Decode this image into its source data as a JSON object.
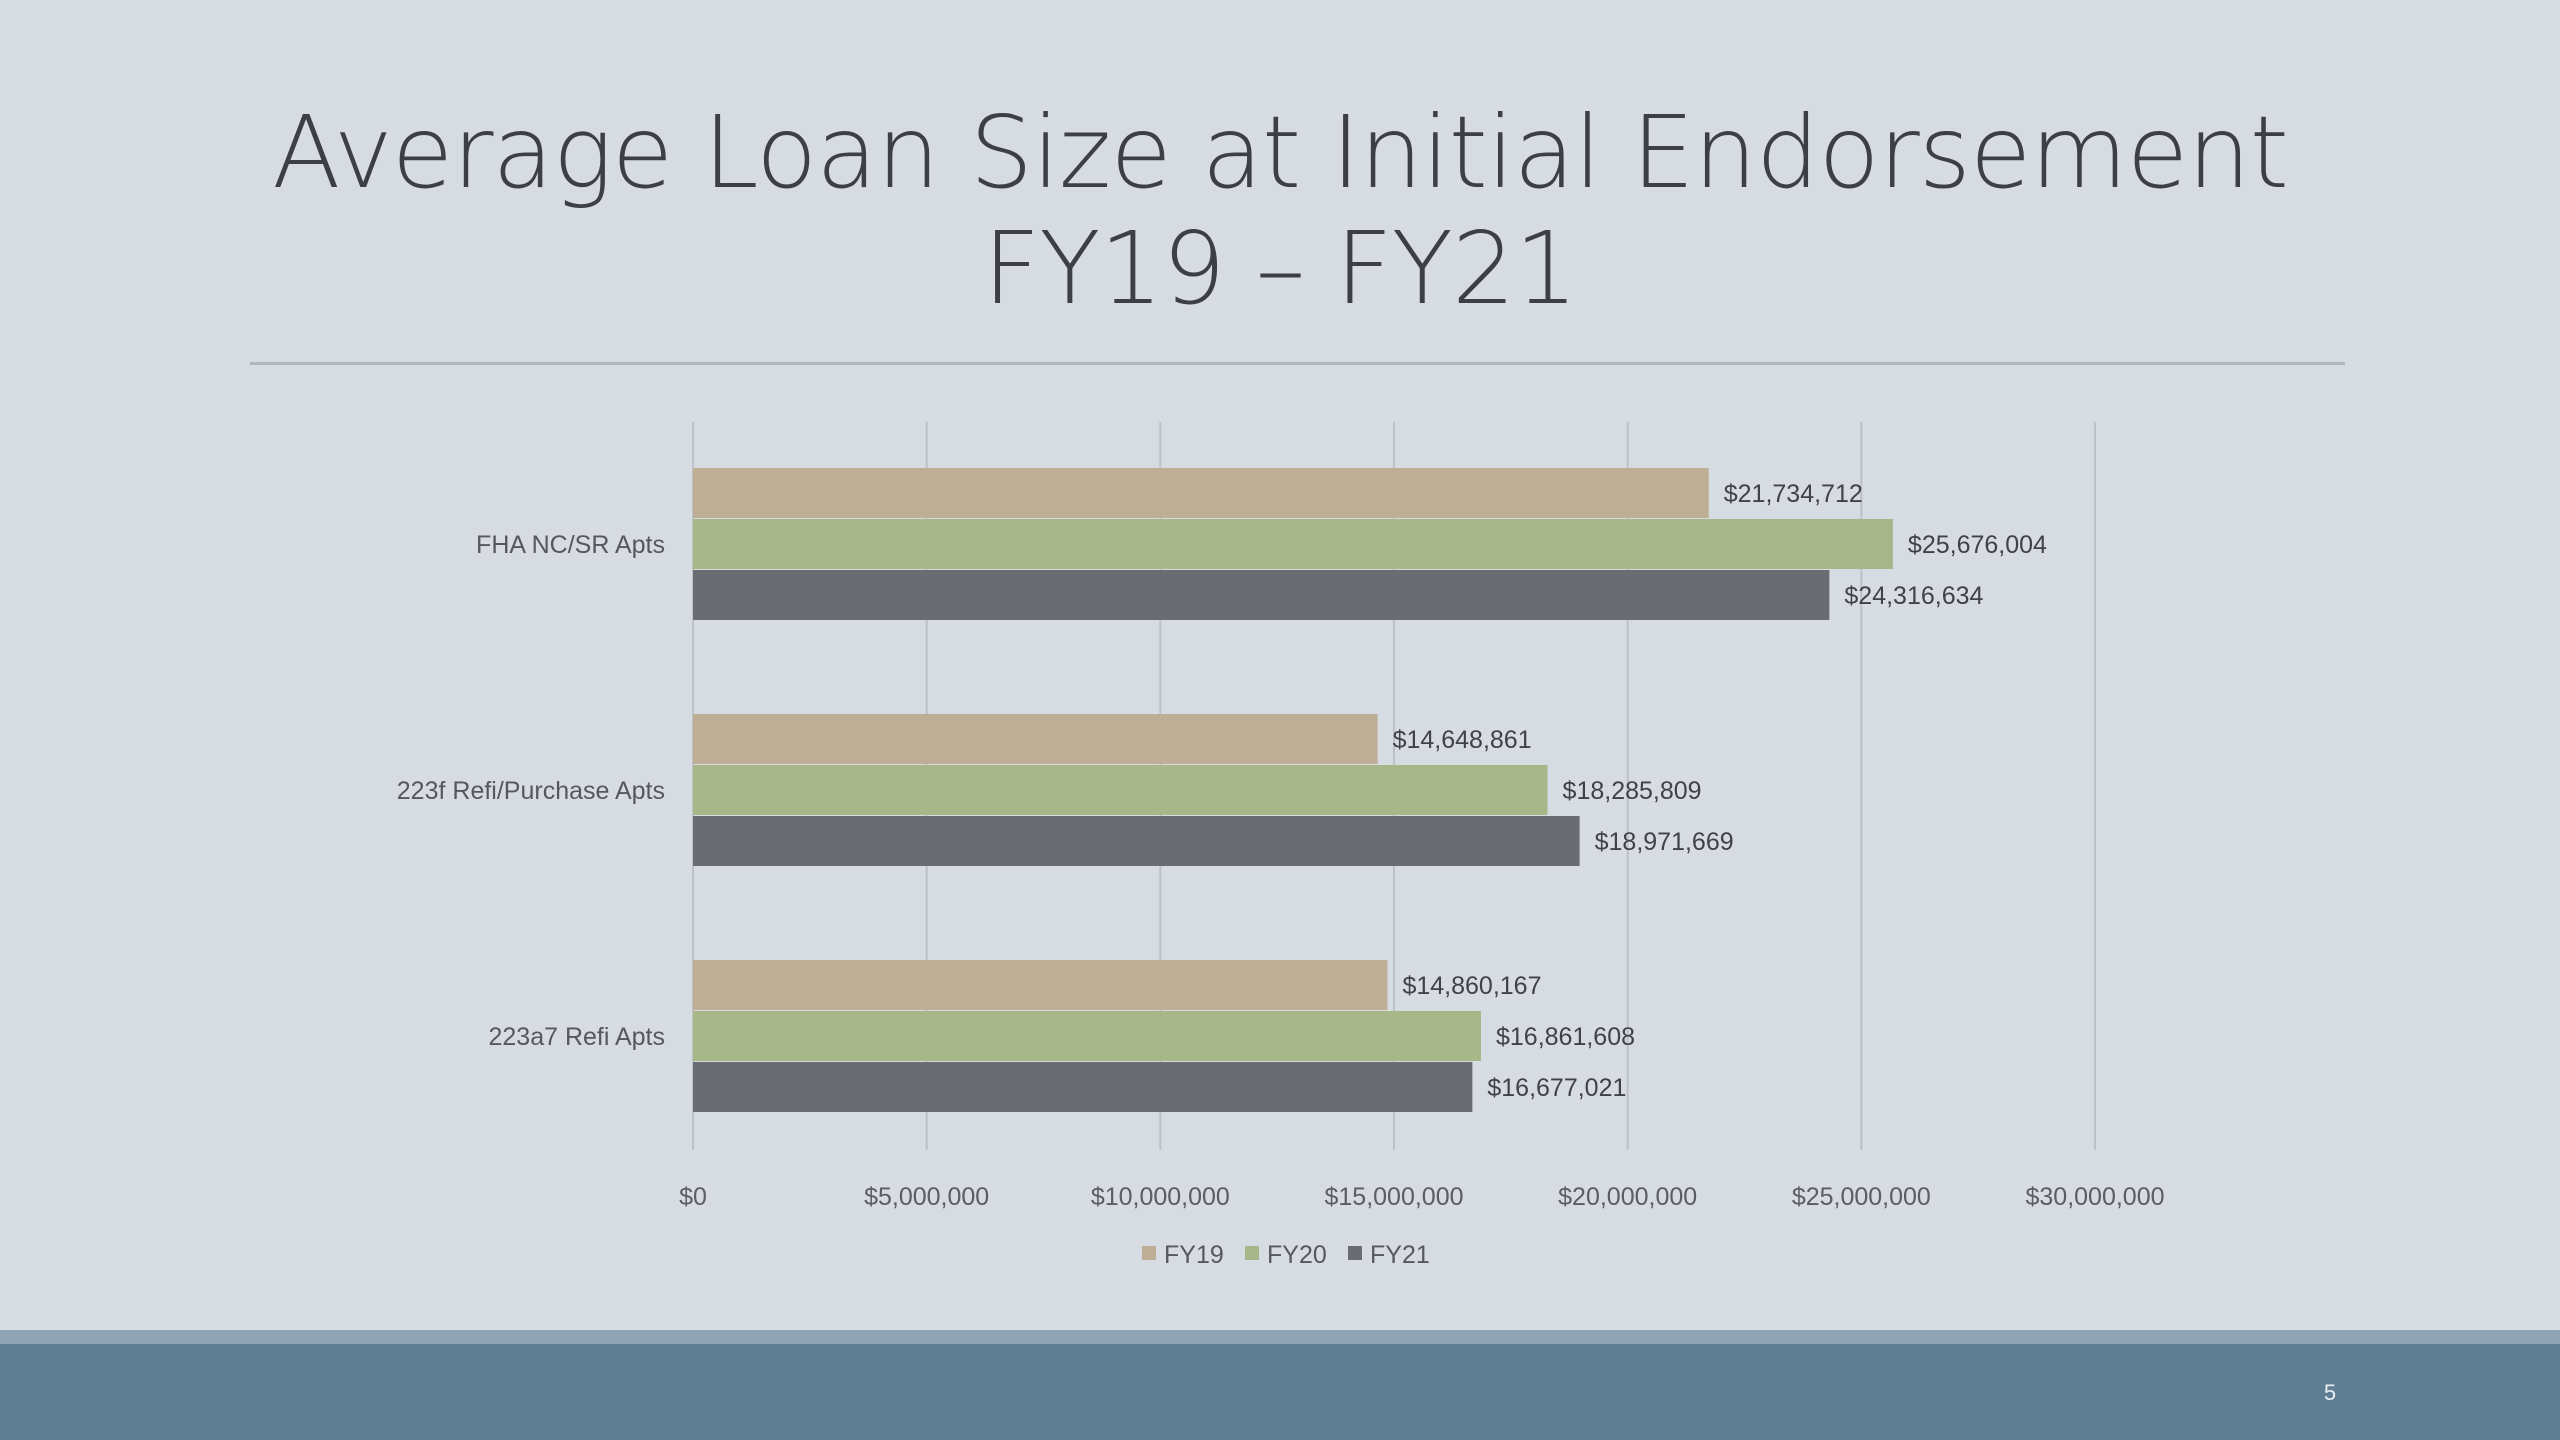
{
  "slide": {
    "title_line1": "Average Loan Size at Initial Endorsement",
    "title_line2": "FY19 – FY21",
    "page_number": "5"
  },
  "colors": {
    "background": "#d6dce1",
    "FY19": "#bfae96",
    "FY20": "#a8b78a",
    "FY21": "#6b6b72",
    "footer": "#5f7e94"
  },
  "chart_data": {
    "type": "bar",
    "orientation": "horizontal",
    "categories": [
      "FHA NC/SR Apts",
      "223f Refi/Purchase Apts",
      "223a7 Refi Apts"
    ],
    "series": [
      {
        "name": "FY19",
        "values": [
          21734712,
          14648861,
          14860167
        ],
        "labels": [
          "$21,734,712",
          "$14,648,861",
          "$14,860,167"
        ]
      },
      {
        "name": "FY20",
        "values": [
          25676004,
          18285809,
          16861608
        ],
        "labels": [
          "$25,676,004",
          "$18,285,809",
          "$16,861,608"
        ]
      },
      {
        "name": "FY21",
        "values": [
          24316634,
          18971669,
          16677021
        ],
        "labels": [
          "$24,316,634",
          "$18,971,669",
          "$16,677,021"
        ]
      }
    ],
    "x_ticks": [
      0,
      5000000,
      10000000,
      15000000,
      20000000,
      25000000,
      30000000
    ],
    "x_tick_labels": [
      "$0",
      "$5,000,000",
      "$10,000,000",
      "$15,000,000",
      "$20,000,000",
      "$25,000,000",
      "$30,000,000"
    ],
    "xlim": [
      0,
      30000000
    ],
    "grid": "vertical",
    "legend": "bottom"
  }
}
